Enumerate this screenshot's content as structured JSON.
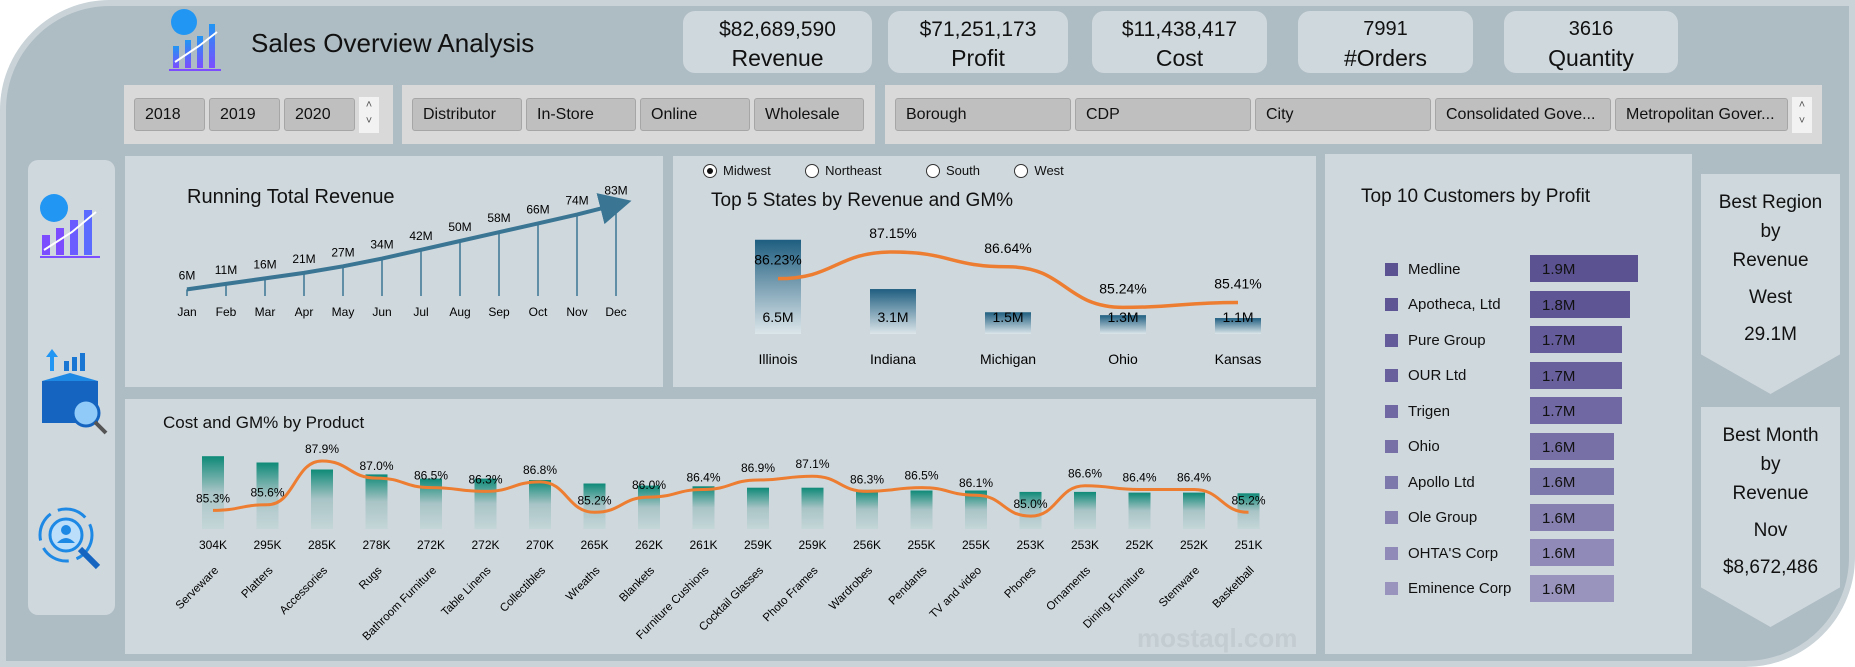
{
  "header": {
    "title": "Sales Overview Analysis",
    "logo": "chart-logo-icon"
  },
  "kpis": [
    {
      "value": "$82,689,590",
      "label": "Revenue"
    },
    {
      "value": "$71,251,173",
      "label": "Profit"
    },
    {
      "value": "$11,438,417",
      "label": "Cost"
    },
    {
      "value": "7991",
      "label": "#Orders"
    },
    {
      "value": "3616",
      "label": "Quantity"
    }
  ],
  "slicers": {
    "years": [
      "2018",
      "2019",
      "2020"
    ],
    "channels": [
      "Distributor",
      "In-Store",
      "Online",
      "Wholesale"
    ],
    "city_types": [
      "Borough",
      "CDP",
      "City",
      "Consolidated Gove...",
      "Metropolitan Gover..."
    ]
  },
  "sidebar": {
    "icons": [
      "dashboard-chart-icon",
      "product-analysis-icon",
      "customer-search-icon"
    ]
  },
  "colors": {
    "background": "#aebcc3",
    "panel": "#cfd8dd",
    "line": "#ed7d31",
    "running": "#3a7594",
    "teal": "#0e8a78",
    "purple": "#5a5291"
  },
  "chart_data": [
    {
      "type": "line",
      "title": "Running Total Revenue",
      "categories": [
        "Jan",
        "Feb",
        "Mar",
        "Apr",
        "May",
        "Jun",
        "Jul",
        "Aug",
        "Sep",
        "Oct",
        "Nov",
        "Dec"
      ],
      "values": [
        6,
        11,
        16,
        21,
        27,
        34,
        42,
        50,
        58,
        66,
        74,
        83
      ],
      "labels": [
        "6M",
        "11M",
        "16M",
        "21M",
        "27M",
        "34M",
        "42M",
        "50M",
        "58M",
        "66M",
        "74M",
        "83M"
      ]
    },
    {
      "type": "bar",
      "title": "Top 5 States by Revenue and GM%",
      "radio_options": [
        "Midwest",
        "Northeast",
        "South",
        "West"
      ],
      "selected": "Midwest",
      "categories": [
        "Illinois",
        "Indiana",
        "Michigan",
        "Ohio",
        "Kansas"
      ],
      "series": [
        {
          "values": [
            6.5,
            3.1,
            1.5,
            1.3,
            1.1
          ],
          "labels": [
            "6.5M",
            "3.1M",
            "1.5M",
            "1.3M",
            "1.1M"
          ]
        },
        {
          "values": [
            86.23,
            87.15,
            86.64,
            85.24,
            85.41
          ],
          "labels": [
            "86.23%",
            "87.15%",
            "86.64%",
            "85.24%",
            "85.41%"
          ]
        }
      ]
    },
    {
      "type": "bar",
      "title": "Cost and GM% by Product",
      "categories": [
        "Serveware",
        "Platters",
        "Accessories",
        "Rugs",
        "Bathroom Furniture",
        "Table Linens",
        "Collectibles",
        "Wreaths",
        "Blankets",
        "Furniture Cushions",
        "Cocktail Glasses",
        "Photo Frames",
        "Wardrobes",
        "Pendants",
        "TV and video",
        "Phones",
        "Ornaments",
        "Dining Furniture",
        "Stemware",
        "Basketball"
      ],
      "series": [
        {
          "values": [
            304,
            295,
            285,
            278,
            272,
            272,
            270,
            265,
            262,
            261,
            259,
            259,
            256,
            255,
            255,
            253,
            253,
            252,
            252,
            251
          ],
          "labels": [
            "304K",
            "295K",
            "285K",
            "278K",
            "272K",
            "272K",
            "270K",
            "265K",
            "262K",
            "261K",
            "259K",
            "259K",
            "256K",
            "255K",
            "255K",
            "253K",
            "253K",
            "252K",
            "252K",
            "251K"
          ]
        },
        {
          "values": [
            85.3,
            85.6,
            87.9,
            87.0,
            86.5,
            86.3,
            86.8,
            85.2,
            86.0,
            86.4,
            86.9,
            87.1,
            86.3,
            86.5,
            86.1,
            85.0,
            86.6,
            86.4,
            86.4,
            85.2
          ],
          "labels": [
            "85.3%",
            "85.6%",
            "87.9%",
            "87.0%",
            "86.5%",
            "86.3%",
            "86.8%",
            "85.2%",
            "86.0%",
            "86.4%",
            "86.9%",
            "87.1%",
            "86.3%",
            "86.5%",
            "86.1%",
            "85.0%",
            "86.6%",
            "86.4%",
            "86.4%",
            "85.2%"
          ]
        }
      ]
    },
    {
      "type": "bar",
      "title": "Top 10 Customers by Profit",
      "categories": [
        "Medline",
        "Apotheca, Ltd",
        "Pure Group",
        "OUR Ltd",
        "Trigen",
        "Ohio",
        "Apollo Ltd",
        "Ole Group",
        "OHTA'S Corp",
        "Eminence Corp"
      ],
      "values": [
        1.9,
        1.8,
        1.7,
        1.7,
        1.7,
        1.6,
        1.6,
        1.6,
        1.6,
        1.6
      ],
      "labels": [
        "1.9M",
        "1.8M",
        "1.7M",
        "1.7M",
        "1.7M",
        "1.6M",
        "1.6M",
        "1.6M",
        "1.6M",
        "1.6M"
      ]
    }
  ],
  "best_region": {
    "title1": "Best Region",
    "title2": "by",
    "title3": "Revenue",
    "name": "West",
    "value": "29.1M"
  },
  "best_month": {
    "title1": "Best Month",
    "title2": "by",
    "title3": "Revenue",
    "name": "Nov",
    "value": "$8,672,486"
  },
  "watermark": "mostaql.com"
}
